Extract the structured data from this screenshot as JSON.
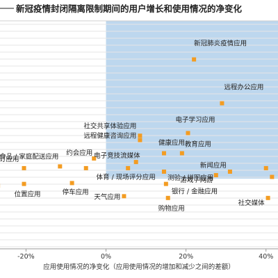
{
  "chart_data": {
    "type": "scatter",
    "title": "新冠疫情封闭隔离限制期间的用户增长和使用情况的净变化",
    "xlabel": "应用使用情况的净变化（应用使用情况的增加和减少之间的差额）",
    "ylabel": "",
    "xlim": [
      -0.265,
      0.43
    ],
    "ylim": [
      -0.3,
      1.0
    ],
    "xticks": [
      "-20%",
      "0%",
      "20%",
      "40%"
    ],
    "xtick_values": [
      -0.2,
      0.0,
      0.2,
      0.4
    ],
    "grid": "horizontal",
    "highlight_region": {
      "x_from": 0.0,
      "color": "#bdd7ee"
    },
    "marker_color": "#f39c22",
    "points": [
      {
        "label": "新冠肺炎疫情应用",
        "x": 0.22,
        "y": 0.78
      },
      {
        "label": "远程办公应用",
        "x": 0.29,
        "y": 0.53
      },
      {
        "label": "电子学习应用",
        "x": 0.205,
        "y": 0.36
      },
      {
        "label": "社交共享体验应用",
        "x": 0.085,
        "y": 0.345
      },
      {
        "label": "远程健康咨询应用",
        "x": 0.085,
        "y": 0.32
      },
      {
        "label": "健康应用",
        "x": 0.145,
        "y": 0.245
      },
      {
        "label": "教育应用",
        "x": 0.19,
        "y": 0.245
      },
      {
        "label": "电子竞技流媒体",
        "x": 0.075,
        "y": 0.195
      },
      {
        "label": "约会应用",
        "x": -0.03,
        "y": 0.215
      },
      {
        "label": "预订应用",
        "x": -0.205,
        "y": 0.16
      },
      {
        "label": "食品 / 家庭配送应用",
        "x": -0.115,
        "y": 0.17
      },
      {
        "label": "",
        "x": -0.05,
        "y": 0.16
      },
      {
        "label": "体育 / 现场评分应用",
        "x": 0.055,
        "y": 0.16
      },
      {
        "label": "测验 / 拼图应用",
        "x": 0.145,
        "y": 0.14
      },
      {
        "label": "新闻应用",
        "x": 0.31,
        "y": 0.14
      },
      {
        "label": "游戏 / 网游",
        "x": 0.275,
        "y": 0.12
      },
      {
        "label": "停车应用",
        "x": -0.085,
        "y": 0.075
      },
      {
        "label": "位置应用",
        "x": -0.205,
        "y": 0.07
      },
      {
        "label": "",
        "x": -0.27,
        "y": 0.06
      },
      {
        "label": "银行 / 金融应用",
        "x": 0.15,
        "y": 0.07
      },
      {
        "label": "天气应用",
        "x": 0.045,
        "y": 0.0
      },
      {
        "label": "购物应用",
        "x": 0.155,
        "y": -0.01
      },
      {
        "label": "社交媒体",
        "x": 0.405,
        "y": -0.01
      },
      {
        "label": "",
        "x": 0.4,
        "y": 0.16
      },
      {
        "label": "",
        "x": 0.415,
        "y": 0.11
      }
    ]
  }
}
